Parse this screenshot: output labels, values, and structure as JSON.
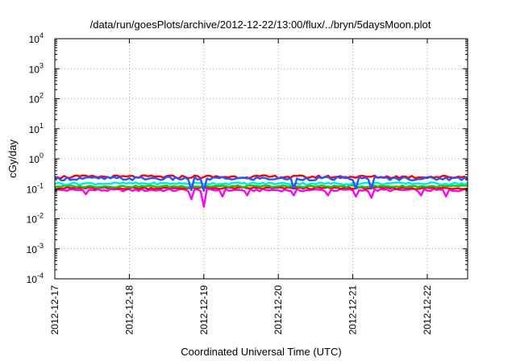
{
  "chart_data": {
    "type": "line",
    "title": "/data/run/goesPlots/archive/2012-12-22/13:00/flux/../bryn/5daysMoon.plot",
    "xlabel": "Coordinated Universal Time (UTC)",
    "ylabel": "cGy/day",
    "yscale": "log",
    "ylim": [
      0.0001,
      10000
    ],
    "y_ticks": [
      {
        "value": 0.0001,
        "base": "10",
        "exp": "-4"
      },
      {
        "value": 0.001,
        "base": "10",
        "exp": "-3"
      },
      {
        "value": 0.01,
        "base": "10",
        "exp": "-2"
      },
      {
        "value": 0.1,
        "base": "10",
        "exp": "-1"
      },
      {
        "value": 1,
        "base": "10",
        "exp": "0"
      },
      {
        "value": 10,
        "base": "10",
        "exp": "1"
      },
      {
        "value": 100,
        "base": "10",
        "exp": "2"
      },
      {
        "value": 1000,
        "base": "10",
        "exp": "3"
      },
      {
        "value": 10000,
        "base": "10",
        "exp": "4"
      }
    ],
    "xlim": [
      "2012-12-17T00:00",
      "2012-12-22T13:00"
    ],
    "x_ticks": [
      "2012-12-17",
      "2012-12-18",
      "2012-12-19",
      "2012-12-20",
      "2012-12-21",
      "2012-12-22"
    ],
    "grid": true,
    "legend": "none",
    "series": [
      {
        "color": "#ff00ff",
        "level": 0.09,
        "noise": 0.1,
        "dips": [
          [
            "2012-12-17T10:00",
            0.065
          ],
          [
            "2012-12-18T20:00",
            0.045
          ],
          [
            "2012-12-19T00:00",
            0.025
          ],
          [
            "2012-12-19T06:00",
            0.055
          ],
          [
            "2012-12-19T14:00",
            0.06
          ],
          [
            "2012-12-20T05:00",
            0.06
          ],
          [
            "2012-12-20T16:00",
            0.06
          ],
          [
            "2012-12-21T01:00",
            0.055
          ],
          [
            "2012-12-21T06:00",
            0.05
          ],
          [
            "2012-12-21T22:00",
            0.06
          ],
          [
            "2012-12-22T06:00",
            0.055
          ]
        ]
      },
      {
        "color": "#ff0000",
        "level": 0.105,
        "noise": 0.08,
        "dips": []
      },
      {
        "color": "#00cc00",
        "level": 0.12,
        "noise": 0.08,
        "dips": []
      },
      {
        "color": "#00e5e5",
        "level": 0.15,
        "noise": 0.09,
        "dips": []
      },
      {
        "color": "#ff0000",
        "level": 0.25,
        "noise": 0.12,
        "dips": []
      },
      {
        "color": "#2a52ff",
        "level": 0.22,
        "noise": 0.14,
        "dips": [
          [
            "2012-12-18T20:00",
            0.09
          ],
          [
            "2012-12-19T00:00",
            0.085
          ],
          [
            "2012-12-20T05:00",
            0.1
          ],
          [
            "2012-12-21T01:00",
            0.1
          ],
          [
            "2012-12-21T06:00",
            0.1
          ]
        ]
      }
    ]
  }
}
